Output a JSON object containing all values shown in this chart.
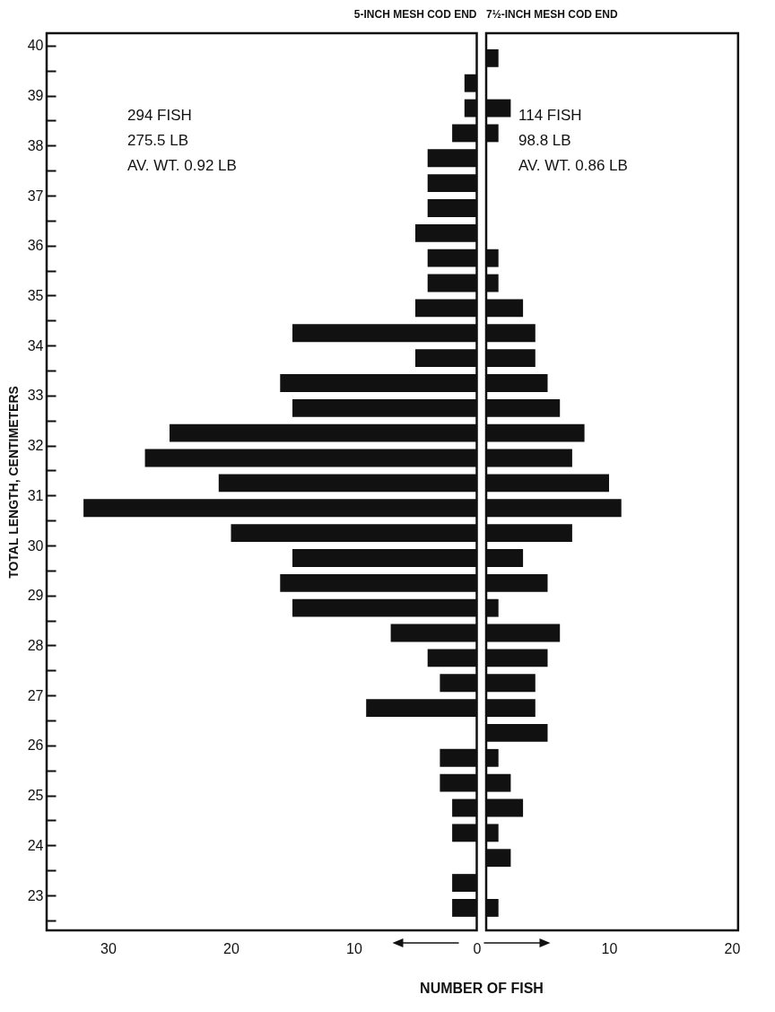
{
  "chart_data": [
    {
      "type": "histogram",
      "orientation": "horizontal",
      "title": "5-INCH MESH COD END",
      "ylabel": "TOTAL LENGTH, CENTIMETERS",
      "xlabel": "NUMBER OF FISH",
      "color": "#111111",
      "bins": [
        22.5,
        23,
        23.5,
        24,
        24.5,
        25,
        25.5,
        26,
        26.5,
        27,
        27.5,
        28,
        28.5,
        29,
        29.5,
        30,
        30.5,
        31,
        31.5,
        32,
        32.5,
        33,
        33.5,
        34,
        34.5,
        35,
        35.5,
        36,
        36.5,
        37,
        37.5,
        38,
        38.5,
        39,
        39.5,
        40
      ],
      "values": [
        2,
        2,
        0,
        2,
        2,
        3,
        3,
        0,
        9,
        3,
        4,
        7,
        15,
        16,
        15,
        20,
        32,
        21,
        27,
        25,
        15,
        16,
        5,
        15,
        5,
        4,
        4,
        5,
        4,
        4,
        4,
        2,
        1,
        1,
        0
      ],
      "xlim": [
        35,
        0
      ],
      "xticks": [
        30,
        20,
        10,
        0
      ],
      "ylim": [
        22.3,
        40.25
      ],
      "yticks": [
        {
          "value": 22.5,
          "label": null
        },
        23,
        {
          "value": 23.5,
          "label": null
        },
        24,
        {
          "value": 24.5,
          "label": null
        },
        25,
        {
          "value": 25.5,
          "label": null
        },
        26,
        {
          "value": 26.5,
          "label": null
        },
        27,
        {
          "value": 27.5,
          "label": null
        },
        28,
        {
          "value": 28.5,
          "label": null
        },
        29,
        {
          "value": 29.5,
          "label": null
        },
        30,
        {
          "value": 30.5,
          "label": null
        },
        31,
        {
          "value": 31.5,
          "label": null
        },
        32,
        {
          "value": 32.5,
          "label": null
        },
        33,
        {
          "value": 33.5,
          "label": null
        },
        34,
        {
          "value": 34.5,
          "label": null
        },
        35,
        {
          "value": 35.5,
          "label": null
        },
        36,
        {
          "value": 36.5,
          "label": null
        },
        37,
        {
          "value": 37.5,
          "label": null
        },
        38,
        {
          "value": 38.5,
          "label": null
        },
        39,
        {
          "value": 39.5,
          "label": null
        },
        40
      ],
      "annotations": [
        "294 FISH\n275.5 LB\nAV. WT. 0.92 LB"
      ]
    },
    {
      "type": "histogram",
      "orientation": "horizontal",
      "title": "7½-INCH MESH COD END",
      "color": "#111111",
      "tick_labels": "x",
      "bins": [
        22.5,
        23,
        23.5,
        24,
        24.5,
        25,
        25.5,
        26,
        26.5,
        27,
        27.5,
        28,
        28.5,
        29,
        29.5,
        30,
        30.5,
        31,
        31.5,
        32,
        32.5,
        33,
        33.5,
        34,
        34.5,
        35,
        35.5,
        36,
        36.5,
        37,
        37.5,
        38,
        38.5,
        39,
        39.5,
        40
      ],
      "values": [
        1,
        0,
        2,
        1,
        3,
        2,
        1,
        5,
        4,
        4,
        5,
        6,
        1,
        5,
        3,
        7,
        11,
        10,
        7,
        8,
        6,
        5,
        4,
        4,
        3,
        1,
        1,
        0,
        0,
        0,
        0,
        1,
        2,
        0,
        1
      ],
      "xlim": [
        0,
        20.5
      ],
      "xticks": [
        10,
        20
      ],
      "ylim": [
        22.3,
        40.25
      ],
      "annotations": [
        "114 FISH\n98.8 LB\nAV. WT. 0.86 LB"
      ]
    }
  ]
}
